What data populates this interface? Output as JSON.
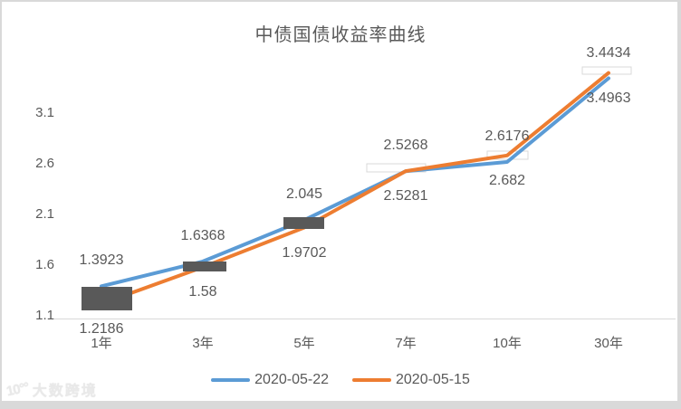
{
  "watermark": {
    "logo_glyph": "10°°",
    "text": "大数跨境"
  },
  "chart_data": {
    "type": "line",
    "title": "中债国债收益率曲线",
    "categories": [
      "1年",
      "3年",
      "5年",
      "7年",
      "10年",
      "30年"
    ],
    "series": [
      {
        "name": "2020-05-22",
        "color": "#5B9BD5",
        "label_position": "above",
        "values": [
          1.3923,
          1.6368,
          2.045,
          2.5268,
          2.6176,
          3.4434
        ]
      },
      {
        "name": "2020-05-15",
        "color": "#ED7D31",
        "label_position": "below",
        "values": [
          1.2186,
          1.58,
          1.9702,
          2.5281,
          2.682,
          3.4963
        ]
      }
    ],
    "y_ticks": [
      1.1,
      1.6,
      2.1,
      2.6,
      3.1
    ],
    "ylim": [
      1.1,
      3.6
    ],
    "xlabel": "",
    "ylabel": "",
    "grid": "off",
    "axis_line": "bottom-only",
    "legend_position": "bottom",
    "data_labels": true,
    "colors": {
      "axis_line": "#D9D9D9",
      "text": "#595959",
      "dark_marker_box": "#595959",
      "light_marker_box_fill": "#FFFFFF",
      "light_marker_box_border": "#D9D9D9",
      "frame": "#D9D9D9"
    },
    "annotations": {
      "point_boxes": [
        {
          "category_index": 0,
          "style": "dark",
          "x": 90,
          "y": 317,
          "w": 56,
          "h": 26
        },
        {
          "category_index": 1,
          "style": "dark",
          "x": 202,
          "y": 289,
          "w": 48,
          "h": 11
        },
        {
          "category_index": 2,
          "style": "dark",
          "x": 313,
          "y": 240,
          "w": 45,
          "h": 13
        },
        {
          "category_index": 3,
          "style": "light",
          "x": 405,
          "y": 181,
          "w": 65,
          "h": 9
        },
        {
          "category_index": 4,
          "style": "light",
          "x": 538,
          "y": 167,
          "w": 45,
          "h": 9
        },
        {
          "category_index": 5,
          "style": "light",
          "x": 643,
          "y": 74,
          "w": 54,
          "h": 8
        }
      ]
    }
  }
}
